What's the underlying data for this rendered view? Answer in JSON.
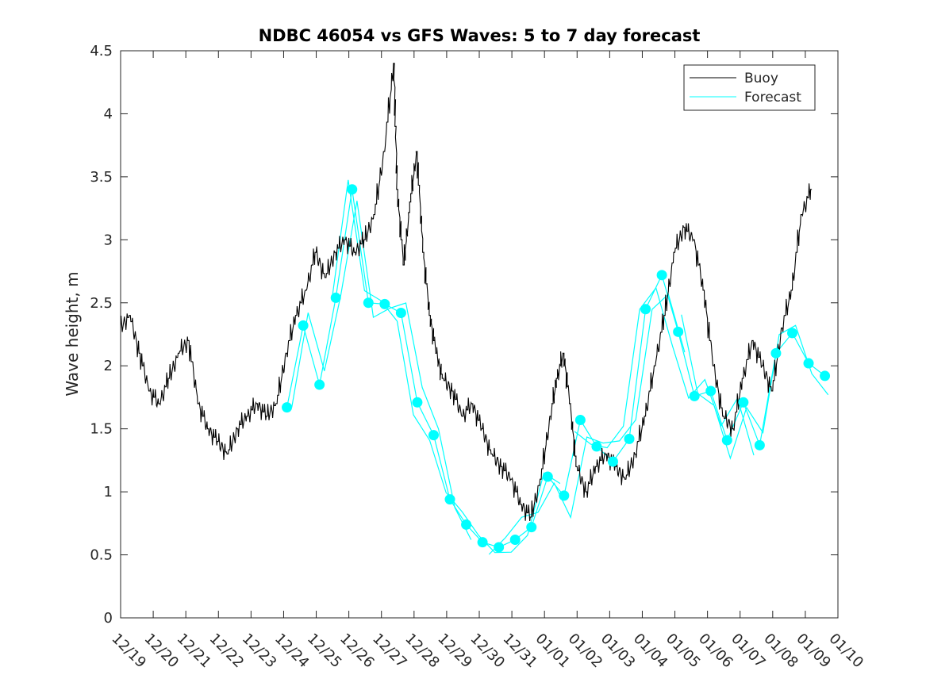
{
  "chart_data": {
    "type": "line",
    "title": "NDBC 46054 vs GFS Waves: 5 to 7 day forecast",
    "xlabel": "",
    "ylabel": "Wave height, m",
    "xlim": [
      0,
      22
    ],
    "ylim": [
      0,
      4.5
    ],
    "x_unit": "days since 12/19",
    "x_tick_labels": [
      "12/19",
      "12/20",
      "12/21",
      "12/22",
      "12/23",
      "12/24",
      "12/25",
      "12/26",
      "12/27",
      "12/28",
      "12/29",
      "12/30",
      "12/31",
      "01/01",
      "01/02",
      "01/03",
      "01/04",
      "01/05",
      "01/06",
      "01/07",
      "01/08",
      "01/09",
      "01/10"
    ],
    "y_ticks": [
      0,
      0.5,
      1,
      1.5,
      2,
      2.5,
      3,
      3.5,
      4,
      4.5
    ],
    "y_tick_labels": [
      "0",
      "0.5",
      "1",
      "1.5",
      "2",
      "2.5",
      "3",
      "3.5",
      "4",
      "4.5"
    ],
    "legend": {
      "position": "top-right",
      "entries": [
        "Buoy",
        "Forecast"
      ]
    },
    "colors": {
      "buoy": "#000000",
      "forecast": "#00ffff"
    },
    "series": [
      {
        "name": "Buoy",
        "x": [
          0,
          0.3,
          0.6,
          0.9,
          1.2,
          1.5,
          1.8,
          2.1,
          2.4,
          2.7,
          3.0,
          3.3,
          3.6,
          3.9,
          4.2,
          4.5,
          4.8,
          5.1,
          5.4,
          5.7,
          6.0,
          6.3,
          6.6,
          6.9,
          7.2,
          7.5,
          7.8,
          8.1,
          8.4,
          8.5,
          8.7,
          8.9,
          9.1,
          9.3,
          9.5,
          9.7,
          9.9,
          10.2,
          10.5,
          10.8,
          11.1,
          11.4,
          11.7,
          12.0,
          12.3,
          12.6,
          12.9,
          13.2,
          13.4,
          13.6,
          13.8,
          14.0,
          14.3,
          14.6,
          14.9,
          15.2,
          15.5,
          15.8,
          16.1,
          16.4,
          16.7,
          17.0,
          17.3,
          17.6,
          17.9,
          18.2,
          18.5,
          18.8,
          19.1,
          19.4,
          19.7,
          20.0,
          20.3,
          20.6,
          20.9,
          21.2
        ],
        "y": [
          2.3,
          2.4,
          2.1,
          1.8,
          1.7,
          1.9,
          2.1,
          2.2,
          1.7,
          1.5,
          1.4,
          1.3,
          1.5,
          1.6,
          1.7,
          1.6,
          1.7,
          2.1,
          2.4,
          2.6,
          2.9,
          2.7,
          2.9,
          3.0,
          2.9,
          3.0,
          3.2,
          3.7,
          4.4,
          3.4,
          2.8,
          3.3,
          3.7,
          2.9,
          2.4,
          2.1,
          1.9,
          1.8,
          1.6,
          1.7,
          1.5,
          1.3,
          1.2,
          1.1,
          0.9,
          0.8,
          1.1,
          1.6,
          1.9,
          2.1,
          1.7,
          1.2,
          1.0,
          1.2,
          1.3,
          1.2,
          1.1,
          1.3,
          1.6,
          2.0,
          2.4,
          2.9,
          3.1,
          3.0,
          2.6,
          2.0,
          1.6,
          1.5,
          1.9,
          2.2,
          2.0,
          1.8,
          2.3,
          2.6,
          3.2,
          3.4
        ]
      },
      {
        "name": "Forecast",
        "x": [
          5.1,
          5.6,
          6.1,
          6.6,
          7.1,
          7.6,
          8.1,
          8.6,
          9.1,
          9.6,
          10.1,
          10.6,
          11.1,
          11.6,
          12.1,
          12.6,
          13.1,
          13.6,
          14.1,
          14.6,
          15.1,
          15.6,
          16.1,
          16.6,
          17.1,
          17.6,
          18.1,
          18.6,
          19.1,
          19.6,
          20.1,
          20.6,
          21.1,
          21.6
        ],
        "y": [
          1.67,
          2.32,
          1.85,
          2.54,
          3.4,
          2.5,
          2.49,
          2.42,
          1.71,
          1.45,
          0.94,
          0.74,
          0.6,
          0.56,
          0.62,
          0.72,
          1.12,
          0.97,
          1.57,
          1.36,
          1.24,
          1.42,
          2.45,
          2.72,
          2.27,
          1.76,
          1.8,
          1.41,
          1.71,
          1.37,
          2.1,
          2.26,
          2.02,
          1.92
        ]
      }
    ]
  }
}
